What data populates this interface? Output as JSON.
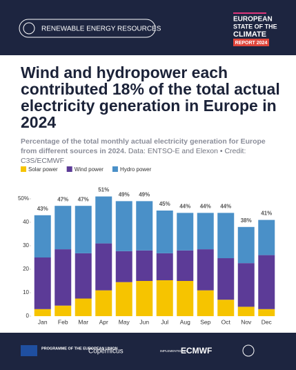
{
  "header": {
    "badge": "RENEWABLE ENERGY RESOURCES",
    "logo_lines": [
      "EUROPEAN",
      "STATE OF THE",
      "CLIMATE"
    ],
    "report": "REPORT 2024"
  },
  "chart_data": {
    "type": "stacked-bar",
    "title": "Wind and hydropower each contributed 18% of the total actual electricity generation in Europe in 2024",
    "subtitle": "Percentage of the total monthly actual electricity generation for Europe from different sources in 2024.",
    "source": "Data: ENTSO-E and Elexon • Credit: C3S/ECMWF",
    "categories": [
      "Jan",
      "Feb",
      "Mar",
      "Apr",
      "May",
      "Jun",
      "Jul",
      "Aug",
      "Sep",
      "Oct",
      "Nov",
      "Dec"
    ],
    "series": [
      {
        "name": "Solar power",
        "color": "#f6c400",
        "values": [
          3,
          4.5,
          7.5,
          11,
          14.5,
          15,
          15.3,
          15,
          11,
          7,
          4,
          3
        ]
      },
      {
        "name": "Wind power",
        "color": "#5c3b97",
        "values": [
          22,
          24,
          19.3,
          20,
          13.2,
          13,
          11.5,
          13,
          17.5,
          17.7,
          18.6,
          23
        ]
      },
      {
        "name": "Hydro power",
        "color": "#4a90c8",
        "values": [
          18,
          18.5,
          20.2,
          20,
          21.3,
          21,
          18.2,
          16,
          15.5,
          19.3,
          15.4,
          15
        ]
      }
    ],
    "totals": {
      "values": [
        43,
        47,
        47,
        51,
        49,
        49,
        45,
        44,
        44,
        44,
        38,
        41
      ],
      "value_labels": [
        "43%",
        "47%",
        "47%",
        "51%",
        "49%",
        "49%",
        "45%",
        "44%",
        "44%",
        "44%",
        "38%",
        "41%"
      ]
    },
    "ylim": [
      0,
      50
    ],
    "yticks": [
      0,
      10,
      20,
      30,
      40,
      {
        "value": 50,
        "label": "50%"
      }
    ],
    "legend": "top-left"
  },
  "footer": {
    "eu": "PROGRAMME OF THE EUROPEAN UNION",
    "copernicus": "Copernicus",
    "implemented": "IMPLEMENTED BY",
    "ecmwf": "ECMWF"
  }
}
